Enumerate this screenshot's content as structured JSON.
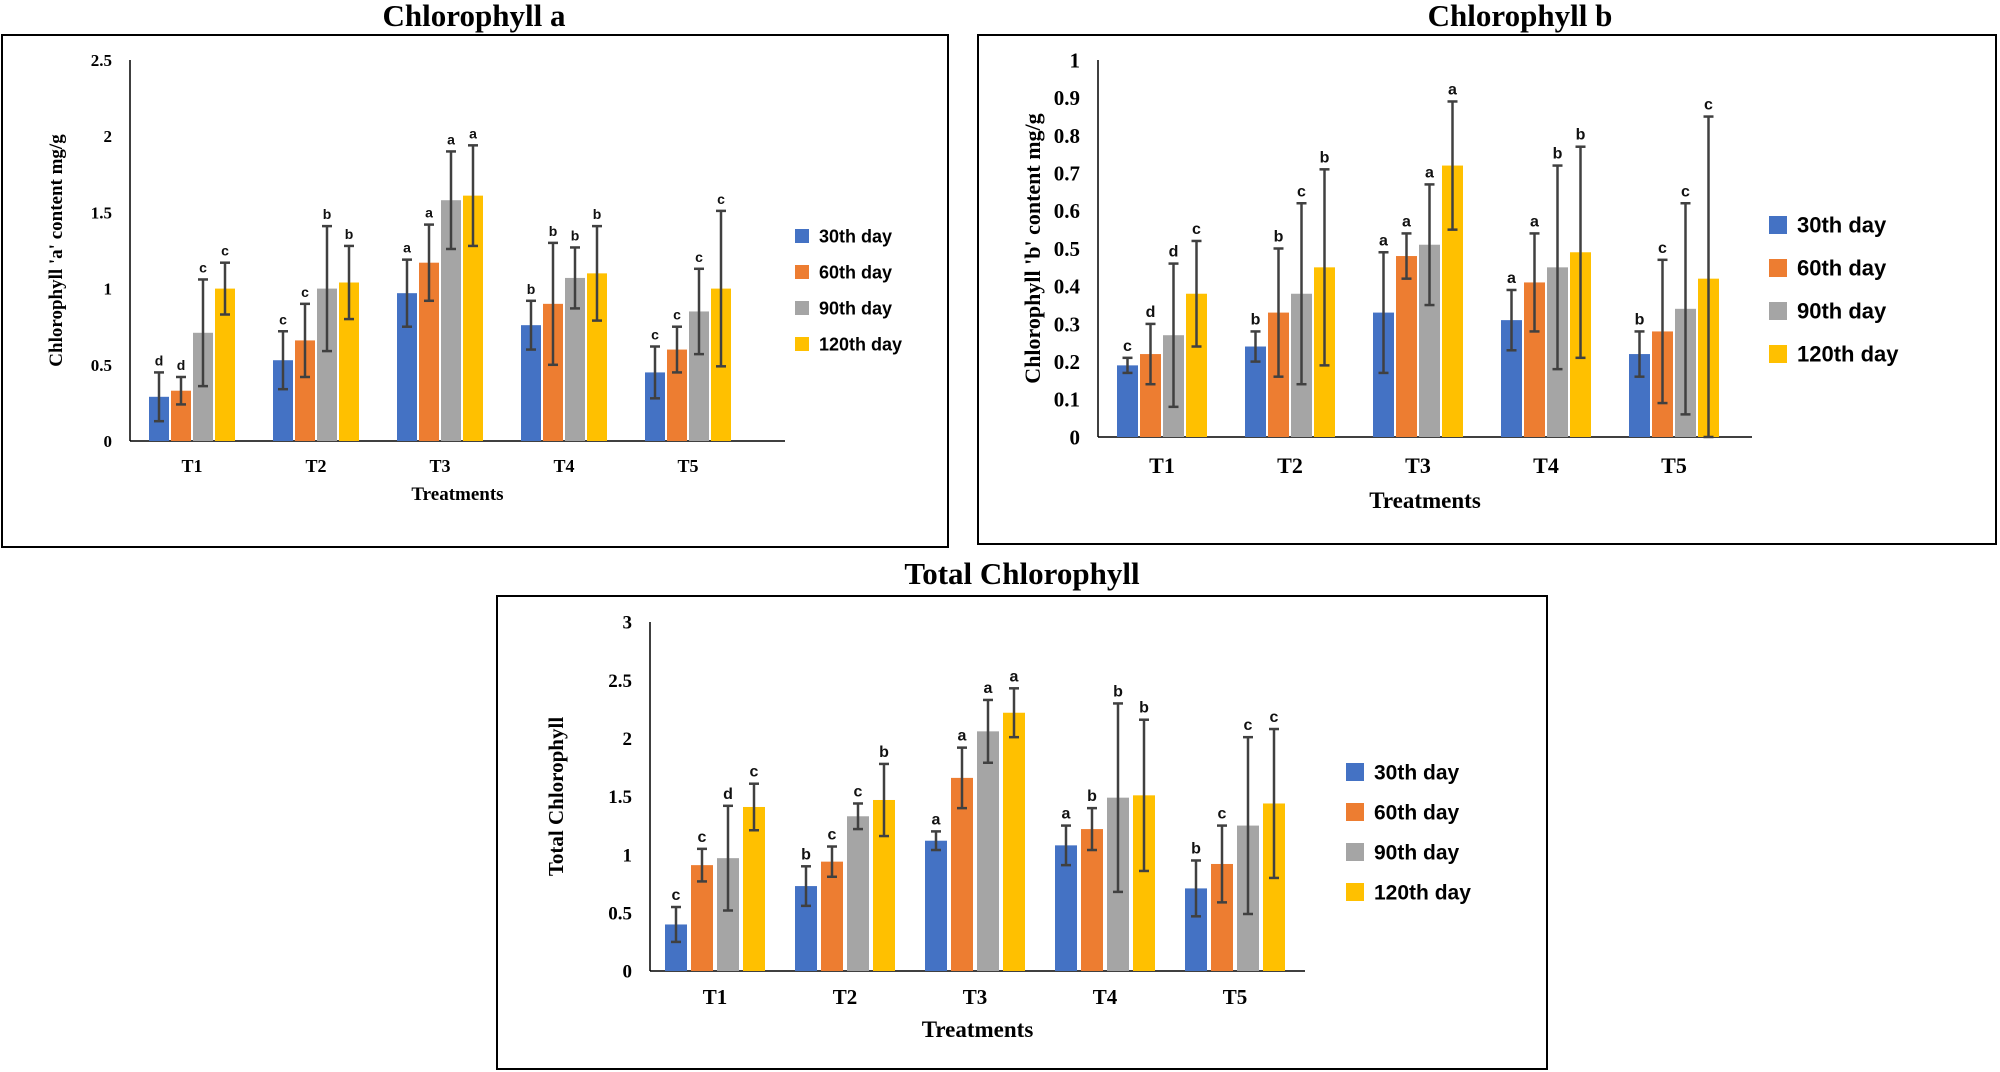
{
  "chart_data": [
    {
      "id": "chl_a",
      "type": "bar",
      "title": "Chlorophyll a",
      "xlabel": "Treatments",
      "ylabel": "Chlorophyll 'a' content mg/g",
      "ylim": [
        0,
        2.5
      ],
      "yticks": [
        "0",
        "0.5",
        "1",
        "1.5",
        "2",
        "2.5"
      ],
      "categories": [
        "T1",
        "T2",
        "T3",
        "T4",
        "T5"
      ],
      "legend_position": "right",
      "series": [
        {
          "name": "30th day",
          "color": "#4472C4",
          "values": [
            0.29,
            0.53,
            0.97,
            0.76,
            0.45
          ],
          "errors": [
            0.16,
            0.19,
            0.22,
            0.16,
            0.17
          ],
          "letters": [
            "d",
            "c",
            "a",
            "b",
            "c"
          ]
        },
        {
          "name": "60th day",
          "color": "#ED7D31",
          "values": [
            0.33,
            0.66,
            1.17,
            0.9,
            0.6
          ],
          "errors": [
            0.09,
            0.24,
            0.25,
            0.4,
            0.15
          ],
          "letters": [
            "d",
            "c",
            "a",
            "b",
            "c"
          ]
        },
        {
          "name": "90th day",
          "color": "#A5A5A5",
          "values": [
            0.71,
            1.0,
            1.58,
            1.07,
            0.85
          ],
          "errors": [
            0.35,
            0.41,
            0.32,
            0.2,
            0.28
          ],
          "letters": [
            "c",
            "b",
            "a",
            "b",
            "c"
          ]
        },
        {
          "name": "120th day",
          "color": "#FFC000",
          "values": [
            1.0,
            1.04,
            1.61,
            1.1,
            1.0
          ],
          "errors": [
            0.17,
            0.24,
            0.33,
            0.31,
            0.51
          ],
          "letters": [
            "c",
            "b",
            "a",
            "b",
            "c"
          ]
        }
      ]
    },
    {
      "id": "chl_b",
      "type": "bar",
      "title": "Chlorophyll b",
      "xlabel": "Treatments",
      "ylabel": "Chlorophyll 'b' content mg/g",
      "ylim": [
        0,
        1
      ],
      "yticks": [
        "0",
        "0.1",
        "0.2",
        "0.3",
        "0.4",
        "0.5",
        "0.6",
        "0.7",
        "0.8",
        "0.9",
        "1"
      ],
      "categories": [
        "T1",
        "T2",
        "T3",
        "T4",
        "T5"
      ],
      "legend_position": "right",
      "series": [
        {
          "name": "30th day",
          "color": "#4472C4",
          "values": [
            0.19,
            0.24,
            0.33,
            0.31,
            0.22
          ],
          "errors": [
            0.02,
            0.04,
            0.16,
            0.08,
            0.06
          ],
          "letters": [
            "c",
            "b",
            "a",
            "a",
            "b"
          ]
        },
        {
          "name": "60th day",
          "color": "#ED7D31",
          "values": [
            0.22,
            0.33,
            0.48,
            0.41,
            0.28
          ],
          "errors": [
            0.08,
            0.17,
            0.06,
            0.13,
            0.19
          ],
          "letters": [
            "d",
            "b",
            "a",
            "a",
            "c"
          ]
        },
        {
          "name": "90th day",
          "color": "#A5A5A5",
          "values": [
            0.27,
            0.38,
            0.51,
            0.45,
            0.34
          ],
          "errors": [
            0.19,
            0.24,
            0.16,
            0.27,
            0.28
          ],
          "letters": [
            "d",
            "c",
            "a",
            "b",
            "c"
          ]
        },
        {
          "name": "120th day",
          "color": "#FFC000",
          "values": [
            0.38,
            0.45,
            0.72,
            0.49,
            0.42
          ],
          "errors": [
            0.14,
            0.26,
            0.17,
            0.28,
            0.43
          ],
          "letters": [
            "c",
            "b",
            "a",
            "b",
            "c"
          ]
        }
      ]
    },
    {
      "id": "chl_total",
      "type": "bar",
      "title": "Total Chlorophyll",
      "xlabel": "Treatments",
      "ylabel": "Total Chlorophyll",
      "ylim": [
        0,
        3
      ],
      "yticks": [
        "0",
        "0.5",
        "1",
        "1.5",
        "2",
        "2.5",
        "3"
      ],
      "categories": [
        "T1",
        "T2",
        "T3",
        "T4",
        "T5"
      ],
      "legend_position": "right",
      "series": [
        {
          "name": "30th day",
          "color": "#4472C4",
          "values": [
            0.4,
            0.73,
            1.12,
            1.08,
            0.71
          ],
          "errors": [
            0.15,
            0.17,
            0.08,
            0.17,
            0.24
          ],
          "letters": [
            "c",
            "b",
            "a",
            "a",
            "b"
          ]
        },
        {
          "name": "60th day",
          "color": "#ED7D31",
          "values": [
            0.91,
            0.94,
            1.66,
            1.22,
            0.92
          ],
          "errors": [
            0.14,
            0.13,
            0.26,
            0.18,
            0.33
          ],
          "letters": [
            "c",
            "c",
            "a",
            "b",
            "c"
          ]
        },
        {
          "name": "90th day",
          "color": "#A5A5A5",
          "values": [
            0.97,
            1.33,
            2.06,
            1.49,
            1.25
          ],
          "errors": [
            0.45,
            0.11,
            0.27,
            0.81,
            0.76
          ],
          "letters": [
            "d",
            "c",
            "a",
            "b",
            "c"
          ]
        },
        {
          "name": "120th day",
          "color": "#FFC000",
          "values": [
            1.41,
            1.47,
            2.22,
            1.51,
            1.44
          ],
          "errors": [
            0.2,
            0.31,
            0.21,
            0.65,
            0.64
          ],
          "letters": [
            "c",
            "b",
            "a",
            "b",
            "c"
          ]
        }
      ]
    }
  ]
}
